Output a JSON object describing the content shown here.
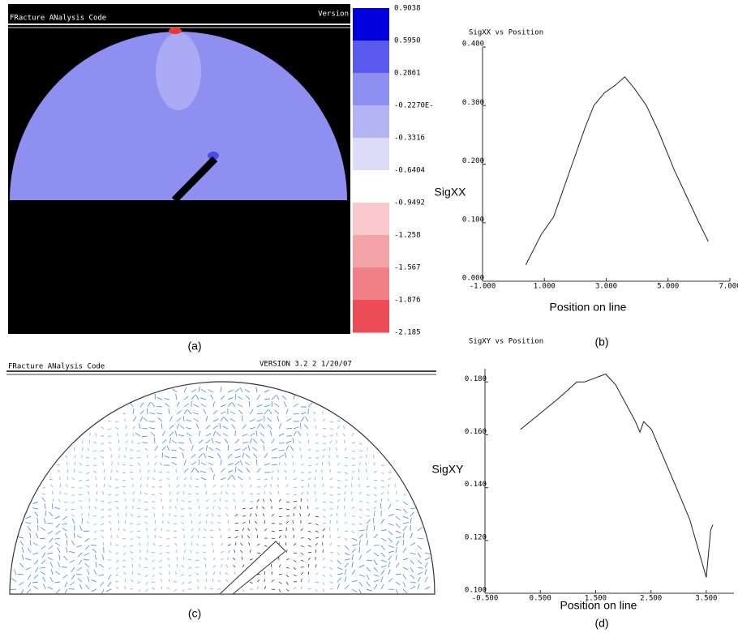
{
  "panel_a": {
    "header": "FRacture ANalysis Code",
    "version": "Version",
    "colorbar_labels": [
      "0.9038",
      "0.5950",
      "0.2861",
      "-0.2270E-",
      "-0.3316",
      "-0.6404",
      "-0.9492",
      "-1.258",
      "-1.567",
      "-1.876",
      "-2.185"
    ],
    "caption": "(a)"
  },
  "panel_c": {
    "header": "FRacture ANalysis Code",
    "version": "VERSION 3.2 2 1/20/07",
    "caption": "(c)"
  },
  "captions": {
    "b": "(b)",
    "d": "(d)"
  },
  "chart_data": [
    {
      "type": "line",
      "title": "SigXX vs Position",
      "x_label": "Position on line",
      "y_label": "SigXX",
      "color": "#222222",
      "x": [
        0.4,
        0.9,
        1.3,
        1.9,
        2.3,
        2.6,
        2.95,
        3.3,
        3.6,
        3.9,
        4.3,
        4.7,
        5.2,
        5.6,
        6.0,
        6.3
      ],
      "values": [
        0.028,
        0.08,
        0.11,
        0.2,
        0.26,
        0.3,
        0.322,
        0.335,
        0.349,
        0.33,
        0.3,
        0.255,
        0.19,
        0.145,
        0.1,
        0.068
      ],
      "xlim": [
        -1,
        7
      ],
      "ylim": [
        0,
        0.4
      ],
      "xticks": [
        {
          "value": -1,
          "label": "-1.000"
        },
        {
          "value": 1,
          "label": "1.000"
        },
        {
          "value": 3,
          "label": "3.000"
        },
        {
          "value": 5,
          "label": "5.000"
        },
        {
          "value": 7,
          "label": "7.000"
        }
      ],
      "yticks": [
        {
          "value": 0,
          "label": "0.000"
        },
        {
          "value": 0.1,
          "label": "0.100"
        },
        {
          "value": 0.2,
          "label": "0.200"
        },
        {
          "value": 0.3,
          "label": "0.300"
        },
        {
          "value": 0.4,
          "label": "0.400"
        }
      ]
    },
    {
      "type": "line",
      "title": "SigXY vs Position",
      "x_label": "Position on line",
      "y_label": "SigXY",
      "color": "#222222",
      "x": [
        0.14,
        0.55,
        0.84,
        1.16,
        1.3,
        1.68,
        1.86,
        2.22,
        2.3,
        2.37,
        2.51,
        3.0,
        3.2,
        3.5,
        3.58,
        3.62
      ],
      "values": [
        0.162,
        0.169,
        0.174,
        0.18,
        0.18,
        0.183,
        0.179,
        0.165,
        0.161,
        0.165,
        0.162,
        0.138,
        0.128,
        0.106,
        0.124,
        0.126
      ],
      "xlim": [
        -0.5,
        4
      ],
      "ylim": [
        0.1,
        0.185
      ],
      "xticks": [
        {
          "value": -0.5,
          "label": "-0.500"
        },
        {
          "value": 0.5,
          "label": "0.500"
        },
        {
          "value": 1.5,
          "label": "1.500"
        },
        {
          "value": 2.5,
          "label": "2.500"
        },
        {
          "value": 3.5,
          "label": "3.500"
        }
      ],
      "yticks": [
        {
          "value": 0.1,
          "label": "0.100"
        },
        {
          "value": 0.12,
          "label": "0.120"
        },
        {
          "value": 0.14,
          "label": "0.140"
        },
        {
          "value": 0.16,
          "label": "0.160"
        },
        {
          "value": 0.18,
          "label": "0.180"
        }
      ]
    }
  ]
}
